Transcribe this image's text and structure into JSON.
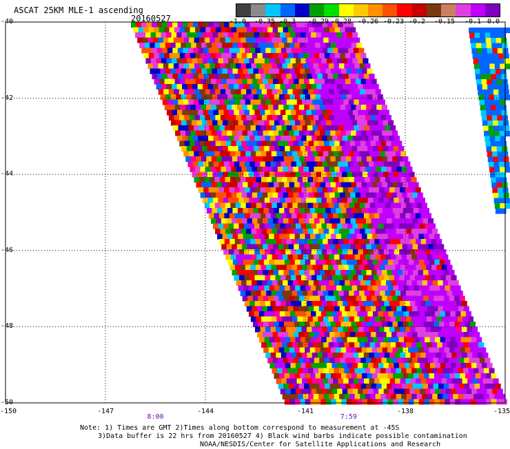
{
  "header": {
    "title": "ASCAT 25KM MLE-1 ascending",
    "date": "20160527"
  },
  "colorbar": {
    "swatches": [
      "#404040",
      "#8a8a8a",
      "#00c8ff",
      "#0066ff",
      "#0000c8",
      "#00a000",
      "#00e000",
      "#ffff00",
      "#ffc800",
      "#ff9000",
      "#ff5000",
      "#ff0000",
      "#c80000",
      "#7a3a10",
      "#c88060",
      "#e040e0",
      "#c000ff",
      "#8000c0"
    ],
    "ticks": [
      "-1.0",
      "-0.35",
      "-0.3",
      "-0.29",
      "-0.28",
      "-0.26",
      "-0.23",
      "-0.2",
      "-0.15",
      "-0.1",
      "0.0"
    ]
  },
  "map": {
    "lat_labels": [
      "-40",
      "-42",
      "-44",
      "-46",
      "-48",
      "-50"
    ],
    "lon_labels": [
      "-150",
      "-147",
      "-144",
      "-141",
      "-138",
      "-135"
    ],
    "lat_range": [
      -50,
      -40
    ],
    "lon_range": [
      -150,
      -135
    ],
    "time_labels": [
      {
        "text": "8:00",
        "lon": -145.5
      },
      {
        "text": "7:59",
        "lon": -139.7
      }
    ]
  },
  "notes": [
    "Note: 1) Times are GMT 2)Times along bottom correspond to measurement at -45S",
    "3)Data buffer is 22 hrs from 20160527 4) Black wind barbs indicate possible contamination",
    "NOAA/NESDIS/Center for Satellite Applications and Research"
  ]
}
